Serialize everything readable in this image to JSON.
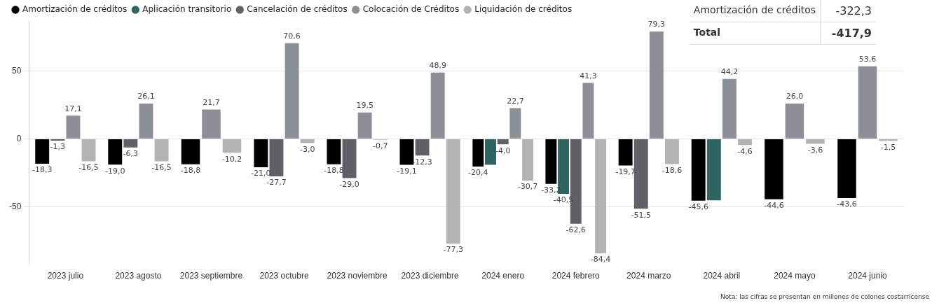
{
  "chart_data": {
    "type": "bar",
    "categories": [
      "2023 julio",
      "2023 agosto",
      "2023 septiembre",
      "2023 octubre",
      "2023 noviembre",
      "2023 diciembre",
      "2024 enero",
      "2024 febrero",
      "2024 marzo",
      "2024 abril",
      "2024 mayo",
      "2024 junio"
    ],
    "series": [
      {
        "name": "Amortización de créditos",
        "color": "#000000",
        "values": [
          -18.3,
          -19.0,
          -18.8,
          -21.0,
          -18.8,
          -19.1,
          -20.4,
          -33.2,
          -19.7,
          -45.6,
          -44.6,
          -43.6
        ],
        "value_labels": [
          "-18,3",
          "-19,0",
          "-18,8",
          "-21,0",
          "-18,8",
          "-19,1",
          "-20,4",
          "-33,2",
          "-19,7",
          "-45,6",
          "-44,6",
          "-43,6"
        ]
      },
      {
        "name": "Aplicación transitorio",
        "color": "#2f6461",
        "values": [
          null,
          null,
          null,
          null,
          null,
          null,
          -19.1,
          -40.5,
          null,
          -45.3,
          null,
          null
        ],
        "value_labels": [
          null,
          null,
          null,
          null,
          null,
          null,
          null,
          "-40,5",
          null,
          null,
          null,
          null
        ]
      },
      {
        "name": "Cancelación de créditos",
        "color": "#5f6166",
        "values": [
          -1.3,
          -6.3,
          null,
          -27.7,
          -29.0,
          -12.3,
          -4.0,
          -62.6,
          -51.5,
          null,
          null,
          null
        ],
        "value_labels": [
          "-1,3",
          "-6,3",
          null,
          "-27,7",
          "-29,0",
          "-12,3",
          "-4,0",
          "-62,6",
          "-51,5",
          null,
          null,
          null
        ]
      },
      {
        "name": "Colocación de Créditos",
        "color": "#8c9096",
        "values": [
          17.1,
          26.1,
          21.7,
          70.6,
          19.5,
          48.9,
          22.7,
          41.3,
          79.3,
          44.2,
          26.0,
          53.6
        ],
        "value_labels": [
          "17,1",
          "26,1",
          "21,7",
          "70,6",
          "19,5",
          "48,9",
          "22,7",
          "41,3",
          "79,3",
          "44,2",
          "26,0",
          "53,6"
        ]
      },
      {
        "name": "Liquidación de créditos",
        "color": "#b3b3b3",
        "values": [
          -16.5,
          -16.5,
          -10.2,
          -3.0,
          -0.7,
          -77.3,
          -30.7,
          -84.4,
          -18.6,
          -4.6,
          -3.6,
          -1.5
        ],
        "value_labels": [
          "-16,5",
          "-16,5",
          "-10,2",
          "-3,0",
          "-0,7",
          "-77,3",
          "-30,7",
          "-84,4",
          "-18,6",
          "-4,6",
          "-3,6",
          "-1,5"
        ]
      }
    ],
    "ylim": [
      -92,
      87
    ],
    "yticks": [
      -50,
      0,
      50
    ],
    "grid": "y",
    "legend": "top left",
    "marker": "circle",
    "annotations": [
      "Amortización de créditos",
      "-322,3",
      "Total",
      "-417,9",
      "Nota: las cifras se presentan en millones de colones costarricense"
    ]
  }
}
